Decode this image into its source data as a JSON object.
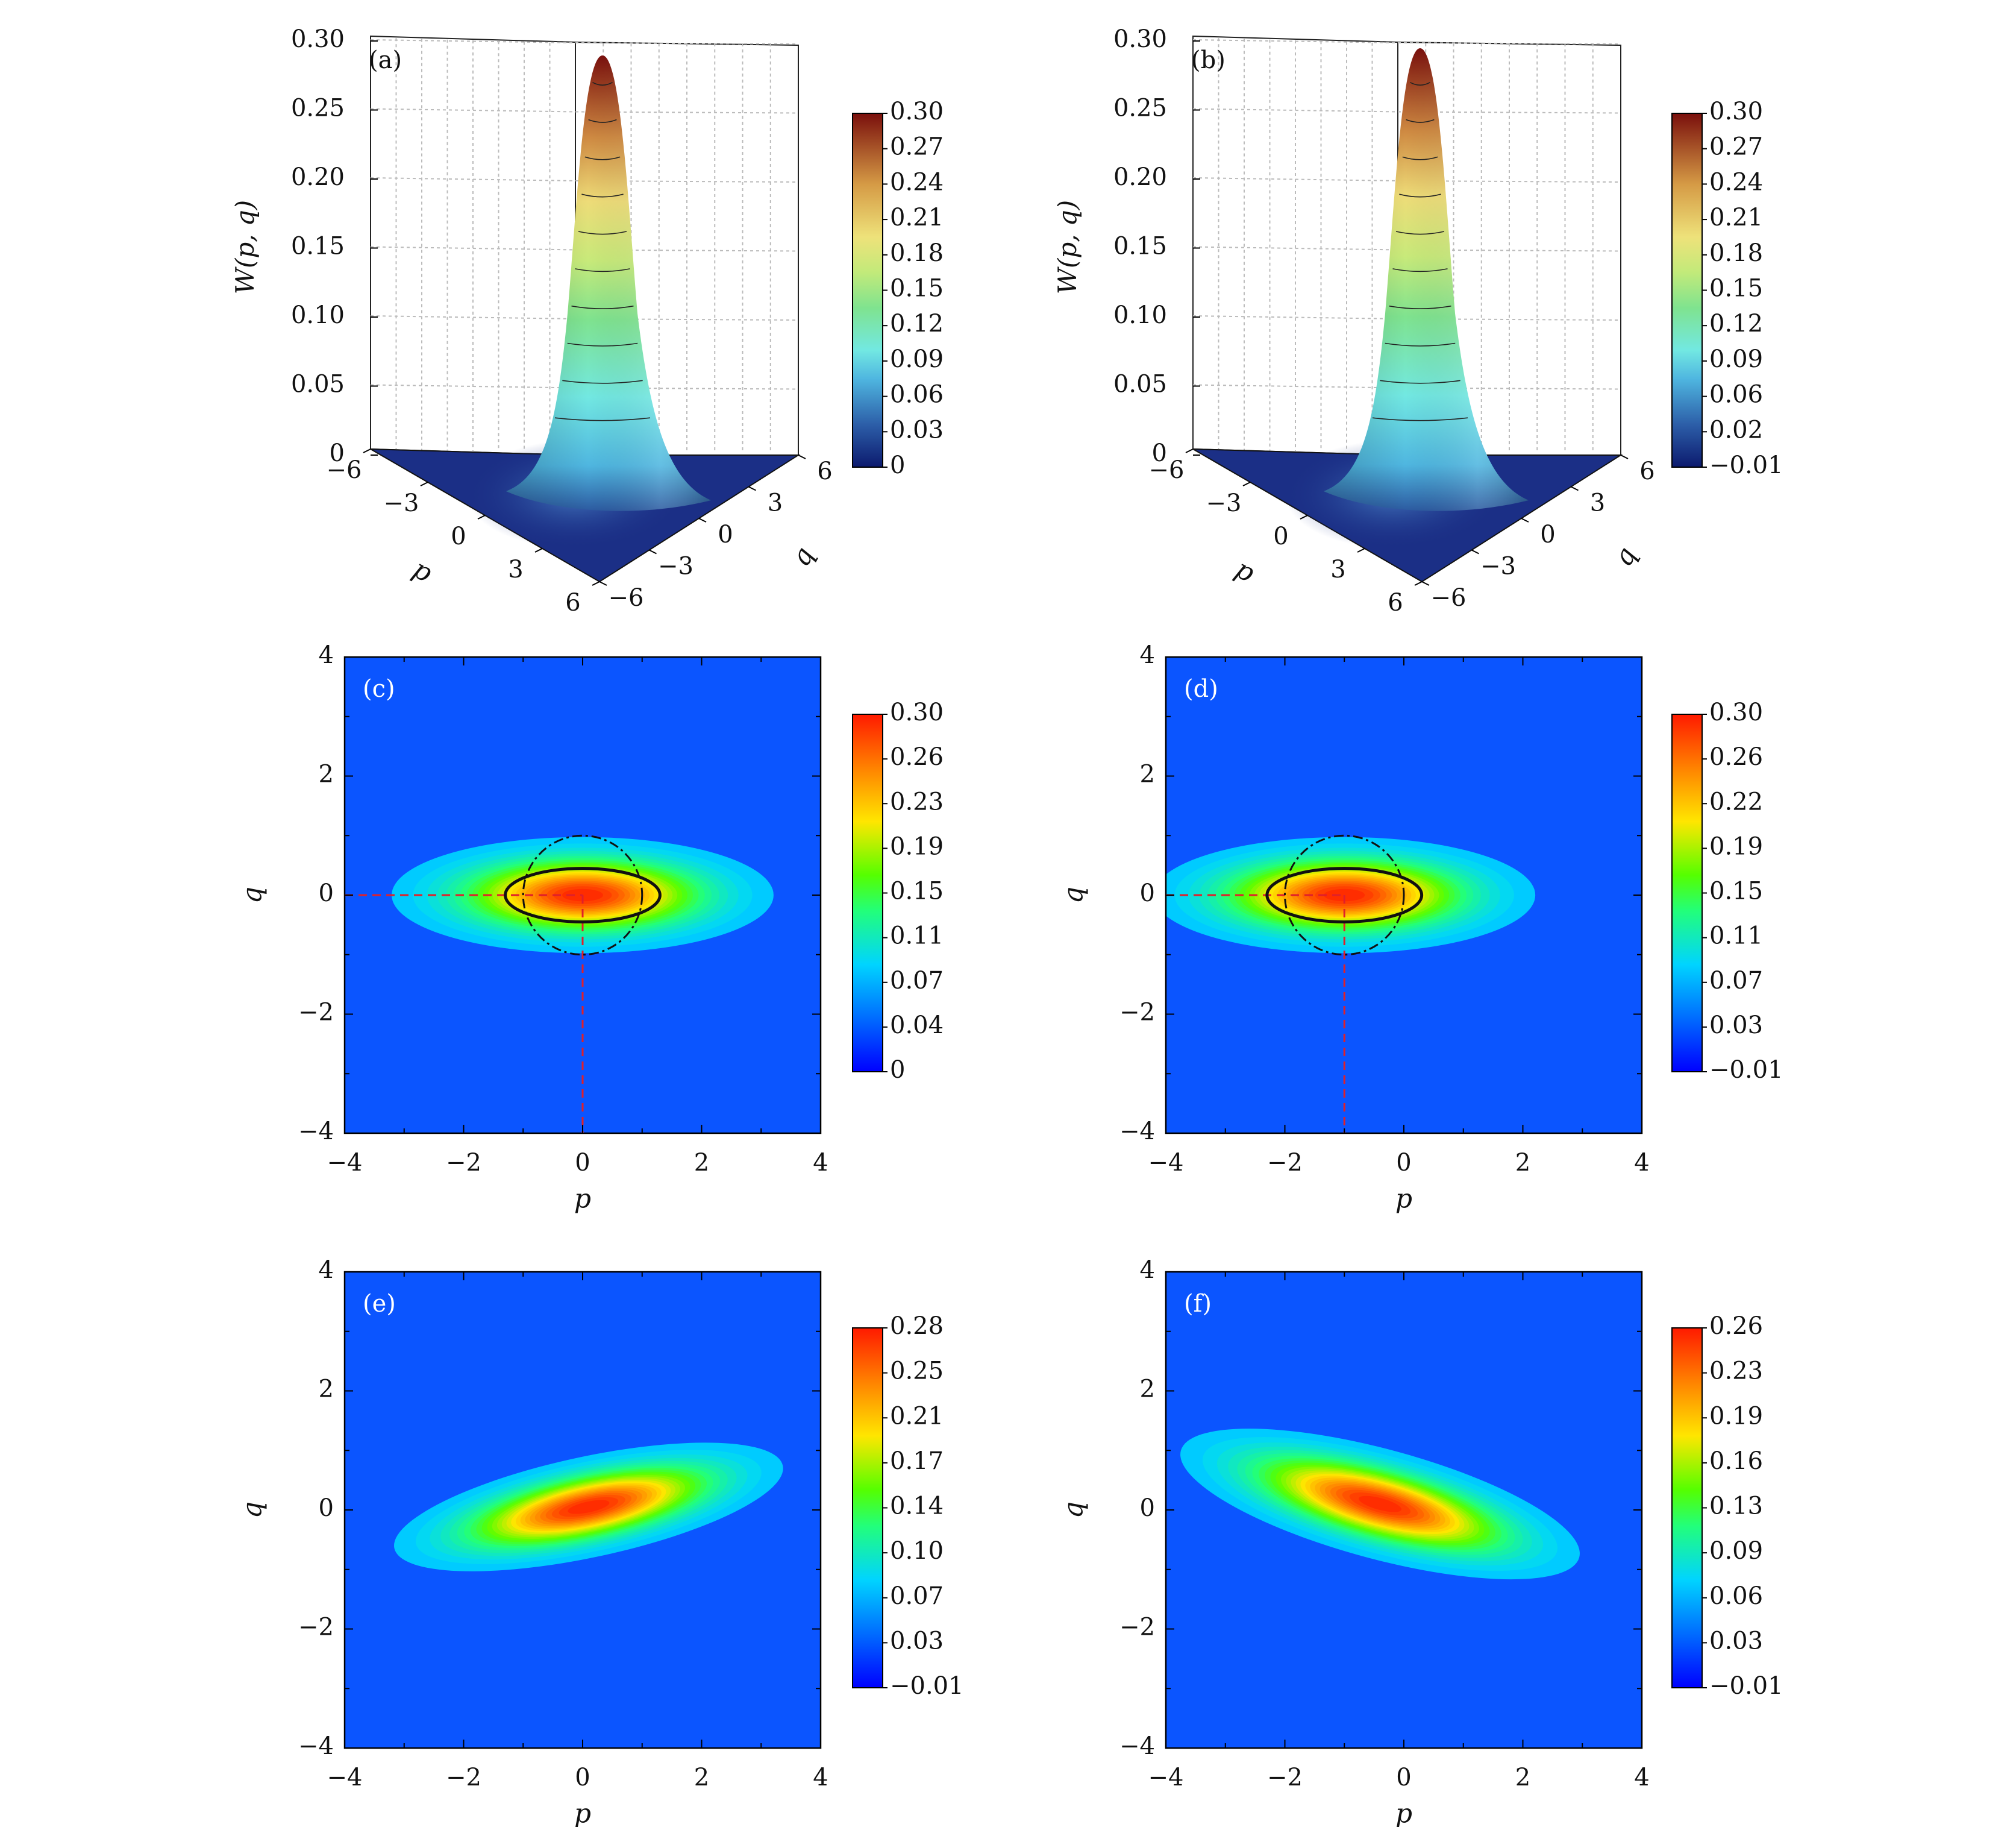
{
  "chart_data": [
    {
      "id": "a",
      "type": "surface3d",
      "panel_label": "(a)",
      "zlabel": "W(p, q)",
      "xlabel": "p",
      "ylabel": "q",
      "ztick_labels": [
        "0",
        "0.05",
        "0.10",
        "0.15",
        "0.20",
        "0.25",
        "0.30"
      ],
      "ptick_labels": [
        "−6",
        "−3",
        "0",
        "3",
        "6"
      ],
      "qtick_labels": [
        "6",
        "3",
        "0",
        "−3",
        "−6"
      ],
      "peak_value": 0.3,
      "peak_p": 0.0,
      "peak_q": 0.0,
      "colorbar": {
        "min": 0,
        "max": 0.3,
        "tick_labels": [
          "0.30",
          "0.27",
          "0.24",
          "0.21",
          "0.18",
          "0.15",
          "0.12",
          "0.09",
          "0.06",
          "0.03",
          "0"
        ]
      }
    },
    {
      "id": "b",
      "type": "surface3d",
      "panel_label": "(b)",
      "zlabel": "W(p, q)",
      "xlabel": "p",
      "ylabel": "q",
      "ztick_labels": [
        "0",
        "0.05",
        "0.10",
        "0.15",
        "0.20",
        "0.25",
        "0.30"
      ],
      "ptick_labels": [
        "−6",
        "−3",
        "0",
        "3",
        "6"
      ],
      "qtick_labels": [
        "6",
        "3",
        "0",
        "−3",
        "−6"
      ],
      "peak_value": 0.3,
      "peak_p": -1.0,
      "peak_q": 0.0,
      "colorbar": {
        "min": -0.01,
        "max": 0.3,
        "tick_labels": [
          "0.30",
          "0.27",
          "0.24",
          "0.21",
          "0.18",
          "0.15",
          "0.12",
          "0.09",
          "0.06",
          "0.02",
          "−0.01"
        ]
      }
    },
    {
      "id": "c",
      "type": "heatmap",
      "panel_label": "(c)",
      "xlabel": "p",
      "ylabel": "q",
      "xlim": [
        -4,
        4
      ],
      "ylim": [
        -4,
        4
      ],
      "xtick_labels": [
        "−4",
        "−2",
        "0",
        "2",
        "4"
      ],
      "ytick_labels": [
        "4",
        "2",
        "0",
        "−2",
        "−4"
      ],
      "center": [
        0.0,
        0.0
      ],
      "sigma_p": 1.25,
      "sigma_q": 0.38,
      "tilt_deg": 0,
      "peak": 0.3,
      "solid_ellipse": {
        "cx": 0.0,
        "cy": 0.0,
        "rx": 1.3,
        "ry": 0.45
      },
      "dashed_circle": {
        "cx": 0.0,
        "cy": 0.0,
        "r": 1.0
      },
      "crosshair": {
        "p": 0.0,
        "q": 0.0
      },
      "colorbar": {
        "min": 0,
        "max": 0.3,
        "tick_labels": [
          "0.30",
          "0.26",
          "0.23",
          "0.19",
          "0.15",
          "0.11",
          "0.07",
          "0.04",
          "0"
        ]
      }
    },
    {
      "id": "d",
      "type": "heatmap",
      "panel_label": "(d)",
      "xlabel": "p",
      "ylabel": "q",
      "xlim": [
        -4,
        4
      ],
      "ylim": [
        -4,
        4
      ],
      "xtick_labels": [
        "−4",
        "−2",
        "0",
        "2",
        "4"
      ],
      "ytick_labels": [
        "4",
        "2",
        "0",
        "−2",
        "−4"
      ],
      "center": [
        -1.0,
        0.0
      ],
      "sigma_p": 1.25,
      "sigma_q": 0.38,
      "tilt_deg": 0,
      "peak": 0.3,
      "solid_ellipse": {
        "cx": -1.0,
        "cy": 0.0,
        "rx": 1.3,
        "ry": 0.45
      },
      "dashed_circle": {
        "cx": -1.0,
        "cy": 0.0,
        "r": 1.0
      },
      "crosshair": {
        "p": -1.0,
        "q": 0.0
      },
      "colorbar": {
        "min": -0.01,
        "max": 0.3,
        "tick_labels": [
          "0.30",
          "0.26",
          "0.22",
          "0.19",
          "0.15",
          "0.11",
          "0.07",
          "0.03",
          "−0.01"
        ]
      }
    },
    {
      "id": "e",
      "type": "heatmap",
      "panel_label": "(e)",
      "xlabel": "p",
      "ylabel": "q",
      "xlim": [
        -4,
        4
      ],
      "ylim": [
        -4,
        4
      ],
      "xtick_labels": [
        "−4",
        "−2",
        "0",
        "2",
        "4"
      ],
      "ytick_labels": [
        "4",
        "2",
        "0",
        "−2",
        "−4"
      ],
      "center": [
        0.1,
        0.05
      ],
      "sigma_p": 1.3,
      "sigma_q": 0.33,
      "tilt_deg": 12,
      "peak": 0.28,
      "colorbar": {
        "min": -0.01,
        "max": 0.28,
        "tick_labels": [
          "0.28",
          "0.25",
          "0.21",
          "0.17",
          "0.14",
          "0.10",
          "0.07",
          "0.03",
          "−0.01"
        ]
      }
    },
    {
      "id": "f",
      "type": "heatmap",
      "panel_label": "(f)",
      "xlabel": "p",
      "ylabel": "q",
      "xlim": [
        -4,
        4
      ],
      "ylim": [
        -4,
        4
      ],
      "xtick_labels": [
        "−4",
        "−2",
        "0",
        "2",
        "4"
      ],
      "ytick_labels": [
        "4",
        "2",
        "0",
        "−2",
        "−4"
      ],
      "center": [
        -0.4,
        0.1
      ],
      "sigma_p": 1.35,
      "sigma_q": 0.36,
      "tilt_deg": -15,
      "peak": 0.26,
      "colorbar": {
        "min": -0.01,
        "max": 0.26,
        "tick_labels": [
          "0.26",
          "0.23",
          "0.19",
          "0.16",
          "0.13",
          "0.09",
          "0.06",
          "0.03",
          "−0.01"
        ]
      }
    }
  ]
}
